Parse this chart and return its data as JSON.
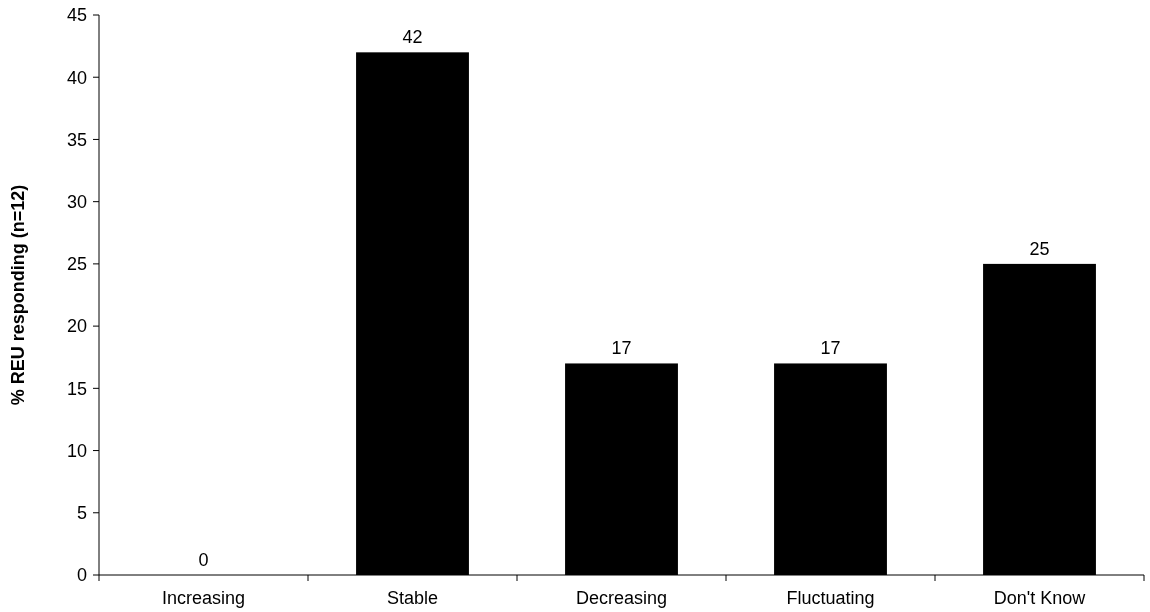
{
  "chart_data": {
    "type": "bar",
    "ylabel": "% REU responding (n=12)",
    "categories": [
      "Increasing",
      "Stable",
      "Decreasing",
      "Fluctuating",
      "Don't Know"
    ],
    "values": [
      0,
      42,
      17,
      17,
      25
    ],
    "color": "#000000",
    "ylim": [
      0,
      45
    ],
    "yticks": [
      0,
      5,
      10,
      15,
      20,
      25,
      30,
      35,
      40,
      45
    ],
    "data_labels": true,
    "grid": false
  }
}
